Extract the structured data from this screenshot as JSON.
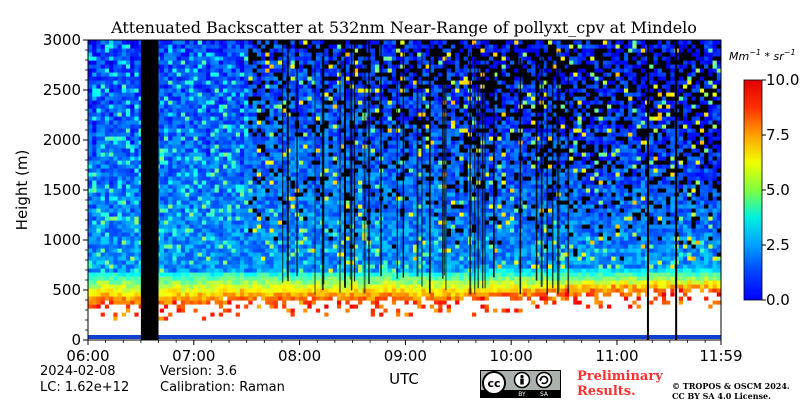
{
  "chart_data": {
    "type": "heatmap",
    "title": "Attenuated Backscatter at 532nm Near-Range of pollyxt_cpv at Mindelo",
    "xlabel": "UTC",
    "ylabel": "Height (m)",
    "x_ticks": [
      "06:00",
      "07:00",
      "08:00",
      "09:00",
      "10:00",
      "11:00",
      "11:59"
    ],
    "y_ticks": [
      "0",
      "500",
      "1000",
      "1500",
      "2000",
      "2500",
      "3000"
    ],
    "xlim": [
      "06:00",
      "11:59"
    ],
    "ylim": [
      0,
      3000
    ],
    "colorbar": {
      "unit": "Mm^-1 * sr^-1",
      "unit_base": "Mm",
      "unit_exp1": "−1",
      "unit_mid": " * sr",
      "unit_exp2": "−1",
      "min": 0.0,
      "max": 10.0,
      "ticks": [
        "0.0",
        "2.5",
        "5.0",
        "7.5",
        "10.0"
      ],
      "colormap": "jet"
    },
    "data_gaps_utc": [
      [
        "06:30",
        "06:40"
      ],
      [
        "11:17",
        "11:18"
      ],
      [
        "11:33",
        "11:34"
      ]
    ],
    "layers": {
      "aerosol_layer_top_m": 700,
      "low_signal_region_m": [
        50,
        450
      ],
      "near_surface_layer_m": [
        0,
        50
      ]
    }
  },
  "footer": {
    "date": "2024-02-08",
    "lc": "LC: 1.62e+12",
    "version": "Version: 3.6",
    "calibration": "Calibration: Raman",
    "preliminary_line1": "Preliminary",
    "preliminary_line2": "Results.",
    "copyright_line1": "© TROPOS & OSCM 2024.",
    "copyright_line2": "CC BY SA 4.0 License.",
    "cc_badge": {
      "cc": "cc",
      "by": "BY",
      "sa": "SA"
    }
  }
}
